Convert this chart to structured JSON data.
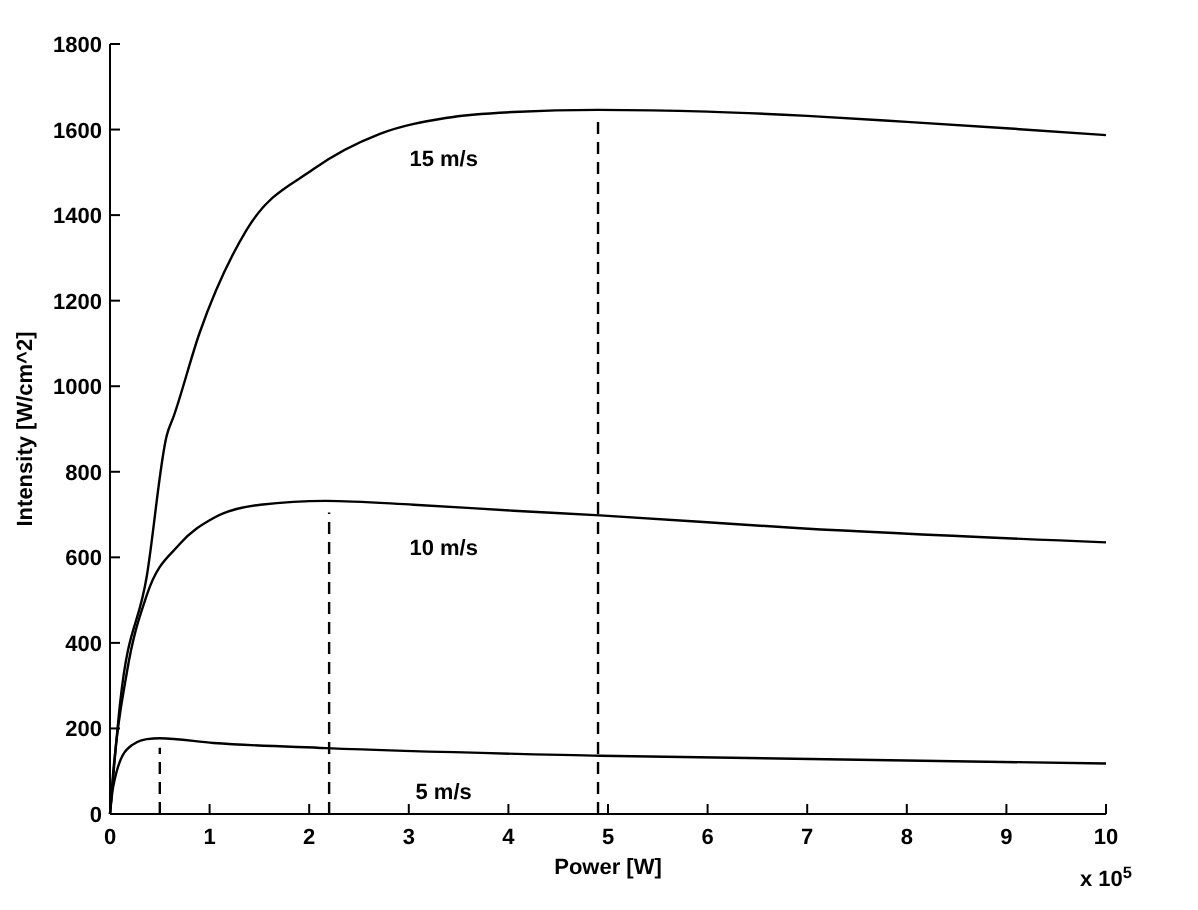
{
  "chart_data": {
    "type": "line",
    "xlabel": "Power [W]",
    "ylabel": "Intensity [W/cm^2]",
    "xlim": [
      0,
      10
    ],
    "xticks": [
      0,
      1,
      2,
      3,
      4,
      5,
      6,
      7,
      8,
      9,
      10
    ],
    "ylim": [
      0,
      1800
    ],
    "yticks": [
      0,
      200,
      400,
      600,
      800,
      1000,
      1200,
      1400,
      1600,
      1800
    ],
    "grid": false,
    "marker": "none",
    "series": [
      {
        "name": "15 m/s",
        "color": "#000000",
        "line_style": "solid",
        "x": [
          0,
          0.1,
          0.37,
          0.57,
          0.64,
          0.9,
          1.37,
          2.04,
          2.71,
          3.37,
          4.05,
          4.9,
          6,
          7,
          8,
          9,
          10
        ],
        "values": [
          0,
          256,
          557,
          885,
          930,
          1125,
          1365,
          1507,
          1590,
          1627,
          1641,
          1646,
          1642,
          1632,
          1618,
          1603,
          1587
        ]
      },
      {
        "name": "10 m/s",
        "color": "#000000",
        "line_style": "solid",
        "x": [
          0,
          0.03,
          0.17,
          0.37,
          0.7,
          1.04,
          1.51,
          2.17,
          3.05,
          4.05,
          4.92,
          6.93,
          10
        ],
        "values": [
          0,
          91,
          332,
          512,
          631,
          692,
          723,
          732,
          723,
          709,
          698,
          668,
          635
        ]
      },
      {
        "name": "5 m/s",
        "color": "#000000",
        "line_style": "solid",
        "x": [
          0,
          0.03,
          0.17,
          0.37,
          0.5,
          1.04,
          2.17,
          4.92,
          10
        ],
        "values": [
          0,
          61,
          151,
          175,
          177,
          166,
          154,
          136,
          118
        ]
      },
      {
        "color": "#000000",
        "line_style": "dashed",
        "x": [
          0.5,
          0.5
        ],
        "values": [
          0,
          155
        ]
      },
      {
        "color": "#000000",
        "line_style": "dashed",
        "x": [
          2.2,
          2.2
        ],
        "values": [
          0,
          705
        ]
      },
      {
        "color": "#000000",
        "line_style": "dashed",
        "x": [
          4.9,
          4.9
        ],
        "values": [
          0,
          1627
        ]
      }
    ],
    "annotations": [
      "x 10$^{5}$"
    ]
  }
}
